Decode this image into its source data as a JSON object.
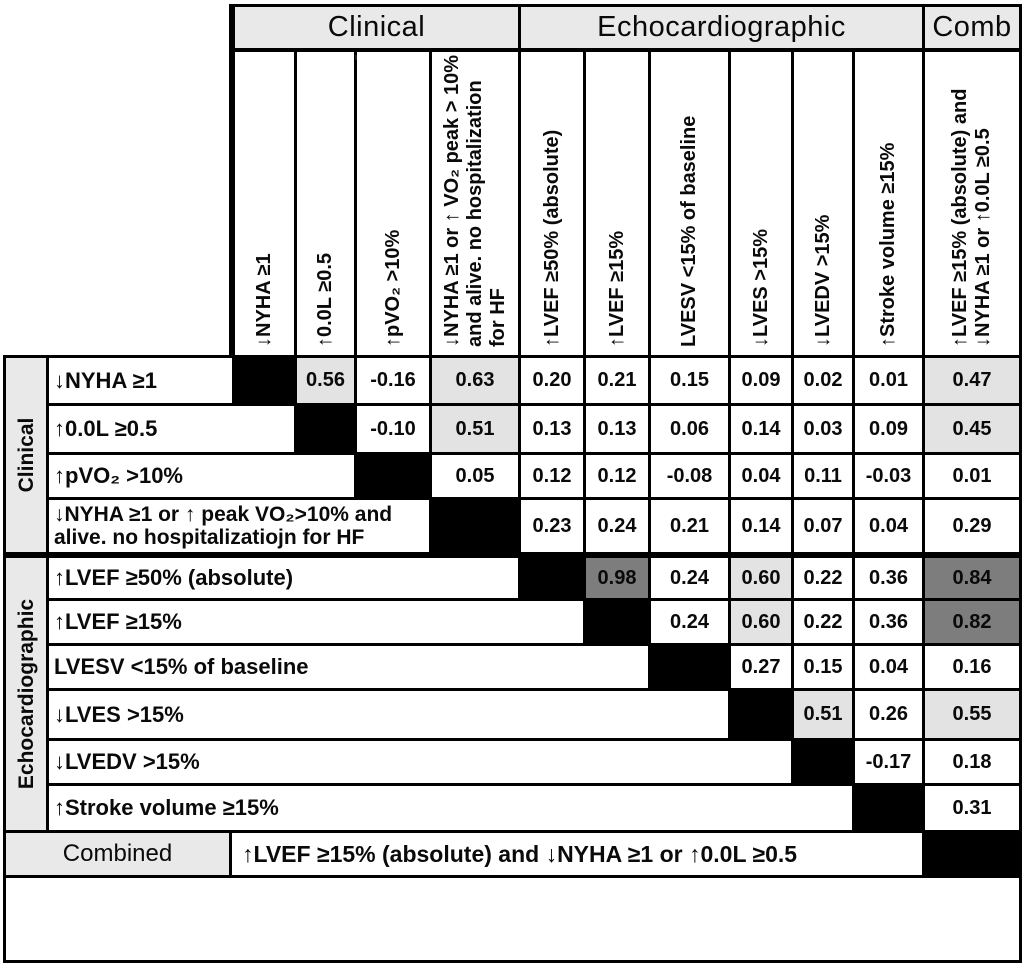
{
  "header": {
    "groups": [
      {
        "label": "Clinical",
        "cols": [
          0,
          3
        ]
      },
      {
        "label": "Echocardiographic",
        "cols": [
          4,
          9
        ]
      },
      {
        "label": "Comb",
        "cols": [
          10,
          10
        ]
      }
    ],
    "columns": [
      "↓NYHA ≥1",
      "↑0.0L ≥0.5",
      "↑pVO₂ >10%",
      "↓NYHA ≥1 or ↑ VO₂ peak > 10% and alive. no hospitalization for HF",
      "↑LVEF ≥50% (absolute)",
      "↑LVEF ≥15%",
      "LVESV <15% of baseline",
      "↓LVES >15%",
      "↓LVEDV >15%",
      "↑Stroke volume ≥15%",
      "↑LVEF ≥15% (absolute) and ↓NYHA ≥1 or ↑0.0L ≥0.5"
    ]
  },
  "row_groups": [
    {
      "label": "Clinical",
      "rows": [
        0,
        3
      ]
    },
    {
      "label": "Echocardiographic",
      "rows": [
        4,
        9
      ]
    }
  ],
  "combined_row": {
    "label": "Combined",
    "definition": "↑LVEF ≥15% (absolute) and ↓NYHA ≥1 or ↑0.0L ≥0.5"
  },
  "chart_data": {
    "type": "heatmap",
    "description": "Upper-triangle correlation matrix between clinical and echocardiographic response criteria; diagonal cells are black; values are listed starting at the column just right of the diagonal",
    "x_categories": [
      "↓NYHA ≥1",
      "↑0.0L ≥0.5",
      "↑pVO₂ >10%",
      "↓NYHA ≥1 or ↑ VO₂ peak > 10% and alive. no hospitalization for HF",
      "↑LVEF ≥50% (absolute)",
      "↑LVEF ≥15%",
      "LVESV <15% of baseline",
      "↓LVES >15%",
      "↓LVEDV >15%",
      "↑Stroke volume ≥15%",
      "↑LVEF ≥15% (absolute) and ↓NYHA ≥1 or ↑0.0L ≥0.5"
    ],
    "rows": [
      {
        "label": "↓NYHA ≥1",
        "values": [
          "0.56",
          "-0.16",
          "0.63",
          "0.20",
          "0.21",
          "0.15",
          "0.09",
          "0.02",
          "0.01",
          "0.47"
        ]
      },
      {
        "label": "↑0.0L ≥0.5",
        "values": [
          "-0.10",
          "0.51",
          "0.13",
          "0.13",
          "0.06",
          "0.14",
          "0.03",
          "0.09",
          "0.45"
        ]
      },
      {
        "label": "↑pVO₂ >10%",
        "values": [
          "0.05",
          "0.12",
          "0.12",
          "-0.08",
          "0.04",
          "0.11",
          "-0.03",
          "0.01"
        ]
      },
      {
        "label": "↓NYHA ≥1 or ↑ peak VO₂>10% and alive. no hospitalizatiojn for HF",
        "values": [
          "0.23",
          "0.24",
          "0.21",
          "0.14",
          "0.07",
          "0.04",
          "0.29"
        ]
      },
      {
        "label": "↑LVEF ≥50% (absolute)",
        "values": [
          "0.98",
          "0.24",
          "0.60",
          "0.22",
          "0.36",
          "0.84"
        ]
      },
      {
        "label": "↑LVEF ≥15%",
        "values": [
          "0.24",
          "0.60",
          "0.22",
          "0.36",
          "0.82"
        ]
      },
      {
        "label": "LVESV <15% of baseline",
        "values": [
          "0.27",
          "0.15",
          "0.04",
          "0.16"
        ]
      },
      {
        "label": "↓LVES >15%",
        "values": [
          "0.51",
          "0.26",
          "0.55"
        ]
      },
      {
        "label": "↓LVEDV >15%",
        "values": [
          "-0.17",
          "0.18"
        ]
      },
      {
        "label": "↑Stroke volume ≥15%",
        "values": [
          "0.31"
        ]
      }
    ],
    "shading_rule": {
      "light_min": 0.4,
      "dark_min": 0.8
    },
    "colors": {
      "diagonal": "#000000",
      "shade_light": "#e3e3e3",
      "shade_dark": "#7d7d7d",
      "header_gray": "#e9e9e9"
    }
  }
}
